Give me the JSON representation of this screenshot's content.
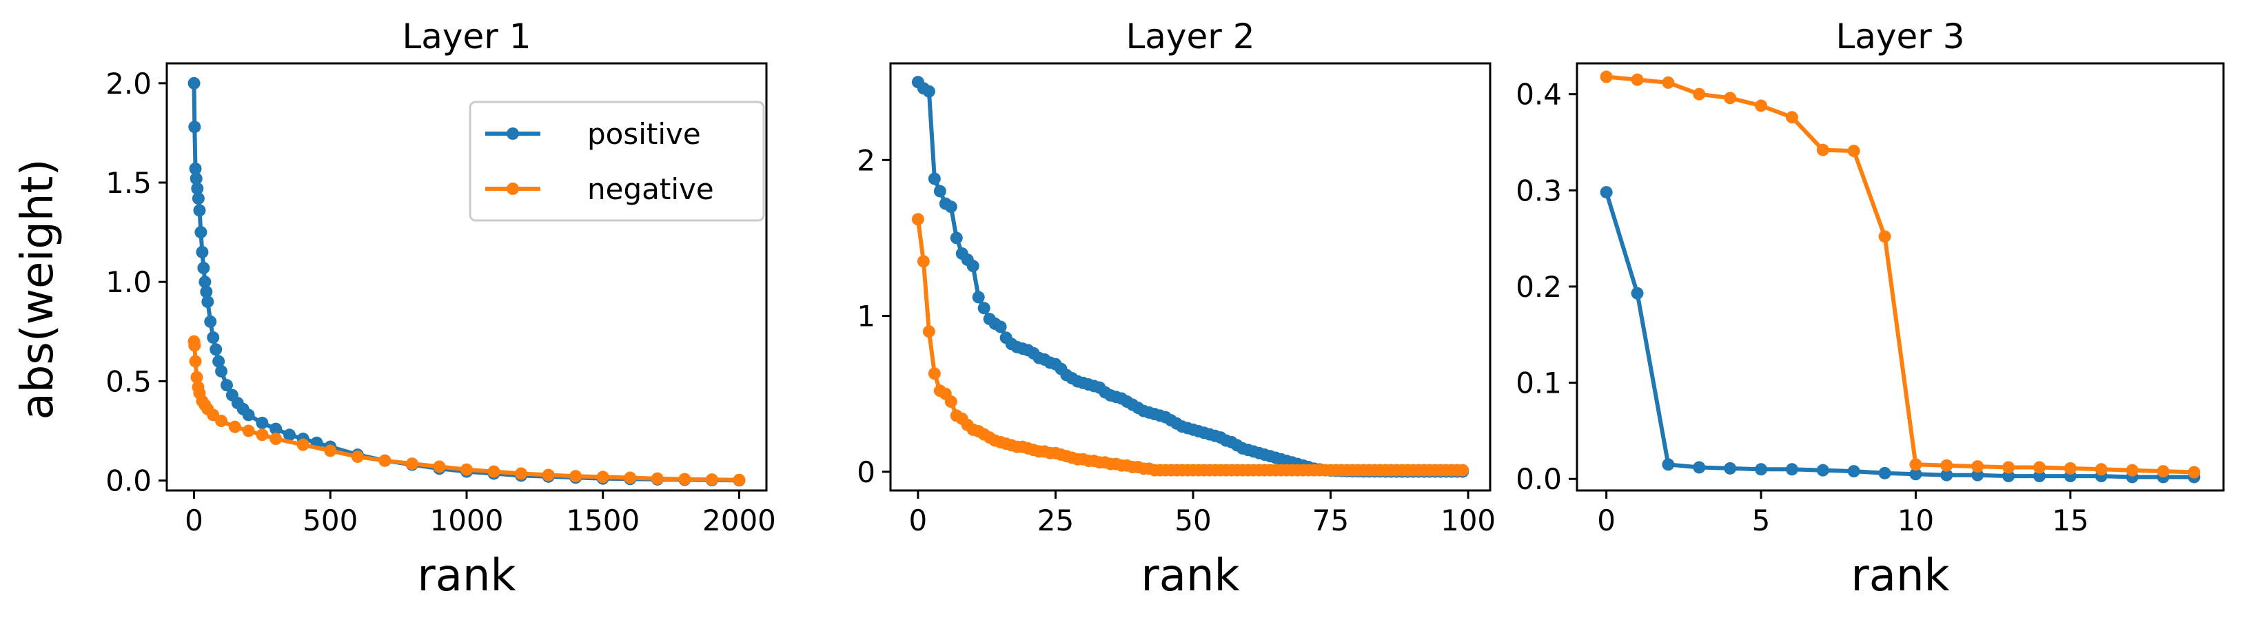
{
  "colors": {
    "positive": "#1f77b4",
    "negative": "#ff7f0e"
  },
  "ylabel": "abs(weight)",
  "chart_data": [
    {
      "type": "line",
      "title": "Layer 1",
      "xlabel": "rank",
      "ylabel": "abs(weight)",
      "xlim": [
        -100,
        2100
      ],
      "ylim": [
        -0.05,
        2.1
      ],
      "xticks": [
        0,
        500,
        1000,
        1500,
        2000
      ],
      "xtick_labels": [
        "0",
        "500",
        "1000",
        "1500",
        "2000"
      ],
      "yticks": [
        0.0,
        0.5,
        1.0,
        1.5,
        2.0
      ],
      "ytick_labels": [
        "0.0",
        "0.5",
        "1.0",
        "1.5",
        "2.0"
      ],
      "legend": {
        "placement": "upper right",
        "entries": [
          "positive",
          "negative"
        ]
      },
      "series": [
        {
          "name": "positive",
          "color": "#1f77b4",
          "x": [
            0,
            2,
            5,
            8,
            12,
            16,
            20,
            25,
            30,
            35,
            40,
            45,
            50,
            60,
            70,
            80,
            90,
            100,
            120,
            140,
            160,
            180,
            200,
            250,
            300,
            350,
            400,
            450,
            500,
            600,
            700,
            800,
            900,
            1000,
            1100,
            1200,
            1300,
            1400,
            1500,
            1600,
            1700,
            1800,
            1900,
            2000
          ],
          "y": [
            2.0,
            1.78,
            1.57,
            1.52,
            1.47,
            1.42,
            1.36,
            1.25,
            1.15,
            1.07,
            1.0,
            0.95,
            0.9,
            0.8,
            0.72,
            0.66,
            0.6,
            0.55,
            0.48,
            0.43,
            0.39,
            0.36,
            0.33,
            0.29,
            0.26,
            0.23,
            0.21,
            0.19,
            0.17,
            0.13,
            0.1,
            0.08,
            0.06,
            0.045,
            0.035,
            0.025,
            0.02,
            0.015,
            0.01,
            0.008,
            0.006,
            0.004,
            0.002,
            0.001
          ]
        },
        {
          "name": "negative",
          "color": "#ff7f0e",
          "x": [
            0,
            2,
            5,
            10,
            15,
            20,
            30,
            40,
            50,
            70,
            100,
            150,
            200,
            250,
            300,
            400,
            500,
            600,
            700,
            800,
            900,
            1000,
            1100,
            1200,
            1300,
            1400,
            1500,
            1600,
            1700,
            1800,
            1900,
            2000
          ],
          "y": [
            0.7,
            0.68,
            0.6,
            0.52,
            0.47,
            0.44,
            0.4,
            0.38,
            0.36,
            0.33,
            0.3,
            0.27,
            0.25,
            0.23,
            0.21,
            0.18,
            0.15,
            0.12,
            0.1,
            0.085,
            0.07,
            0.055,
            0.045,
            0.035,
            0.028,
            0.022,
            0.018,
            0.014,
            0.01,
            0.007,
            0.005,
            0.003
          ]
        }
      ]
    },
    {
      "type": "line",
      "title": "Layer 2",
      "xlabel": "rank",
      "xlim": [
        -5,
        104
      ],
      "ylim": [
        -0.12,
        2.62
      ],
      "xticks": [
        0,
        25,
        50,
        75,
        100
      ],
      "xtick_labels": [
        "0",
        "25",
        "50",
        "75",
        "100"
      ],
      "yticks": [
        0,
        1,
        2
      ],
      "ytick_labels": [
        "0",
        "1",
        "2"
      ],
      "series": [
        {
          "name": "positive",
          "color": "#1f77b4",
          "x": [
            0,
            1,
            2,
            3,
            4,
            5,
            6,
            7,
            8,
            9,
            10,
            11,
            12,
            13,
            14,
            15,
            16,
            17,
            18,
            19,
            20,
            21,
            22,
            23,
            24,
            25,
            26,
            27,
            28,
            29,
            30,
            31,
            32,
            33,
            34,
            35,
            36,
            37,
            38,
            39,
            40,
            41,
            42,
            43,
            44,
            45,
            46,
            47,
            48,
            49,
            50,
            51,
            52,
            53,
            54,
            55,
            56,
            57,
            58,
            59,
            60,
            61,
            62,
            63,
            64,
            65,
            66,
            67,
            68,
            69,
            70,
            71,
            72,
            73,
            74,
            75,
            76,
            77,
            78,
            79,
            80,
            81,
            82,
            83,
            84,
            85,
            86,
            87,
            88,
            89,
            90,
            91,
            92,
            93,
            94,
            95,
            96,
            97,
            98,
            99
          ],
          "y": [
            2.5,
            2.46,
            2.44,
            1.88,
            1.8,
            1.72,
            1.7,
            1.5,
            1.4,
            1.36,
            1.32,
            1.12,
            1.05,
            0.98,
            0.95,
            0.93,
            0.86,
            0.82,
            0.8,
            0.79,
            0.78,
            0.76,
            0.73,
            0.72,
            0.7,
            0.69,
            0.66,
            0.62,
            0.6,
            0.58,
            0.57,
            0.56,
            0.55,
            0.54,
            0.51,
            0.49,
            0.48,
            0.47,
            0.45,
            0.43,
            0.41,
            0.39,
            0.38,
            0.37,
            0.36,
            0.35,
            0.33,
            0.31,
            0.29,
            0.28,
            0.27,
            0.26,
            0.25,
            0.24,
            0.23,
            0.22,
            0.2,
            0.19,
            0.17,
            0.15,
            0.14,
            0.13,
            0.12,
            0.11,
            0.1,
            0.09,
            0.08,
            0.07,
            0.06,
            0.05,
            0.04,
            0.03,
            0.02,
            0.015,
            0.01,
            0.008,
            0.006,
            0.005,
            0.004,
            0.003,
            0.003,
            0.002,
            0.002,
            0.002,
            0.002,
            0.001,
            0.001,
            0.001,
            0.001,
            0.001,
            0.001,
            0.001,
            0.001,
            0.001,
            0.001,
            0.001,
            0.001,
            0.001,
            0.001,
            0.001
          ]
        },
        {
          "name": "negative",
          "color": "#ff7f0e",
          "x": [
            0,
            1,
            2,
            3,
            4,
            5,
            6,
            7,
            8,
            9,
            10,
            11,
            12,
            13,
            14,
            15,
            16,
            17,
            18,
            19,
            20,
            21,
            22,
            23,
            24,
            25,
            26,
            27,
            28,
            29,
            30,
            31,
            32,
            33,
            34,
            35,
            36,
            37,
            38,
            39,
            40,
            41,
            42,
            43,
            44,
            45,
            46,
            47,
            48,
            49,
            50,
            51,
            52,
            53,
            54,
            55,
            56,
            57,
            58,
            59,
            60,
            61,
            62,
            63,
            64,
            65,
            66,
            67,
            68,
            69,
            70,
            71,
            72,
            73,
            74,
            75,
            76,
            77,
            78,
            79,
            80,
            81,
            82,
            83,
            84,
            85,
            86,
            87,
            88,
            89,
            90,
            91,
            92,
            93,
            94,
            95,
            96,
            97,
            98,
            99
          ],
          "y": [
            1.62,
            1.35,
            0.9,
            0.63,
            0.52,
            0.5,
            0.45,
            0.36,
            0.34,
            0.3,
            0.27,
            0.26,
            0.24,
            0.22,
            0.2,
            0.19,
            0.18,
            0.17,
            0.16,
            0.16,
            0.15,
            0.14,
            0.13,
            0.13,
            0.12,
            0.12,
            0.11,
            0.1,
            0.09,
            0.08,
            0.08,
            0.07,
            0.07,
            0.06,
            0.06,
            0.05,
            0.05,
            0.04,
            0.04,
            0.03,
            0.03,
            0.02,
            0.02,
            0.01,
            0.01,
            0.01,
            0.01,
            0.01,
            0.01,
            0.01,
            0.01,
            0.01,
            0.01,
            0.01,
            0.01,
            0.01,
            0.01,
            0.01,
            0.01,
            0.01,
            0.01,
            0.01,
            0.01,
            0.01,
            0.01,
            0.01,
            0.01,
            0.01,
            0.01,
            0.01,
            0.01,
            0.01,
            0.01,
            0.01,
            0.01,
            0.01,
            0.01,
            0.01,
            0.01,
            0.01,
            0.01,
            0.01,
            0.01,
            0.01,
            0.01,
            0.01,
            0.01,
            0.01,
            0.01,
            0.01,
            0.01,
            0.01,
            0.01,
            0.01,
            0.01,
            0.01,
            0.01,
            0.01,
            0.01,
            0.01
          ]
        }
      ]
    },
    {
      "type": "line",
      "title": "Layer 3",
      "xlabel": "rank",
      "xlim": [
        -0.95,
        19.95
      ],
      "ylim": [
        -0.012,
        0.432
      ],
      "xticks": [
        0,
        5,
        10,
        15
      ],
      "xtick_labels": [
        "0",
        "5",
        "10",
        "15"
      ],
      "yticks": [
        0.0,
        0.1,
        0.2,
        0.3,
        0.4
      ],
      "ytick_labels": [
        "0.0",
        "0.1",
        "0.2",
        "0.3",
        "0.4"
      ],
      "series": [
        {
          "name": "positive",
          "color": "#1f77b4",
          "x": [
            0,
            1,
            2,
            3,
            4,
            5,
            6,
            7,
            8,
            9,
            10,
            11,
            12,
            13,
            14,
            15,
            16,
            17,
            18,
            19
          ],
          "y": [
            0.298,
            0.193,
            0.015,
            0.012,
            0.011,
            0.01,
            0.01,
            0.009,
            0.008,
            0.006,
            0.005,
            0.004,
            0.004,
            0.003,
            0.003,
            0.003,
            0.003,
            0.002,
            0.002,
            0.002
          ]
        },
        {
          "name": "negative",
          "color": "#ff7f0e",
          "x": [
            0,
            1,
            2,
            3,
            4,
            5,
            6,
            7,
            8,
            9,
            10,
            11,
            12,
            13,
            14,
            15,
            16,
            17,
            18,
            19
          ],
          "y": [
            0.418,
            0.415,
            0.412,
            0.4,
            0.396,
            0.388,
            0.376,
            0.342,
            0.341,
            0.252,
            0.015,
            0.014,
            0.013,
            0.012,
            0.012,
            0.011,
            0.01,
            0.009,
            0.008,
            0.007
          ]
        }
      ]
    }
  ]
}
